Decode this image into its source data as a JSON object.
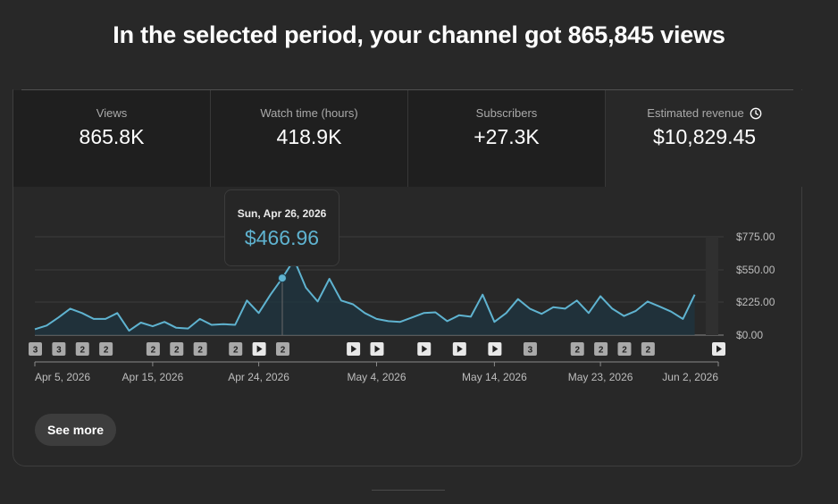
{
  "headline": "In the selected period, your channel got 865,845 views",
  "metrics": [
    {
      "label": "Views",
      "value": "865.8K"
    },
    {
      "label": "Watch time (hours)",
      "value": "418.9K"
    },
    {
      "label": "Subscribers",
      "value": "+27.3K"
    },
    {
      "label": "Estimated revenue",
      "value": "$10,829.45",
      "icon": "clock-icon"
    }
  ],
  "tooltip": {
    "date": "Sun, Apr 26, 2026",
    "value": "$466.96"
  },
  "see_more_label": "See more",
  "colors": {
    "line": "#5fb3d0",
    "accent_value": "#5fb3d0",
    "background": "#282828"
  },
  "chart_data": {
    "type": "area",
    "metric": "Estimated revenue",
    "y_ticks": [
      "$775.00",
      "$550.00",
      "$225.00",
      "$0.00"
    ],
    "y_tick_values": [
      775,
      550,
      225,
      0
    ],
    "x_tick_labels": [
      "Apr 5, 2026",
      "Apr 15, 2026",
      "Apr 24, 2026",
      "May 4, 2026",
      "May 14, 2026",
      "May 23, 2026",
      "Jun 2, 2026"
    ],
    "x_tick_days": [
      0,
      10,
      19,
      29,
      39,
      48,
      58
    ],
    "start_date": "2026-04-05",
    "values": [
      40,
      65,
      120,
      180,
      150,
      110,
      110,
      150,
      30,
      85,
      60,
      90,
      50,
      45,
      110,
      70,
      75,
      70,
      240,
      150,
      300,
      466.96,
      620,
      370,
      230,
      460,
      240,
      210,
      150,
      110,
      95,
      90,
      120,
      150,
      155,
      95,
      135,
      125,
      300,
      90,
      150,
      255,
      180,
      145,
      190,
      180,
      240,
      150,
      285,
      180,
      130,
      165,
      230,
      195,
      160,
      110,
      300
    ],
    "highlight_index": 21,
    "markers": [
      {
        "day": 0,
        "kind": "count",
        "label": "3"
      },
      {
        "day": 2,
        "kind": "count",
        "label": "3"
      },
      {
        "day": 4,
        "kind": "count",
        "label": "2"
      },
      {
        "day": 6,
        "kind": "count",
        "label": "2"
      },
      {
        "day": 10,
        "kind": "count",
        "label": "2"
      },
      {
        "day": 12,
        "kind": "count",
        "label": "2"
      },
      {
        "day": 14,
        "kind": "count",
        "label": "2"
      },
      {
        "day": 17,
        "kind": "count",
        "label": "2"
      },
      {
        "day": 19,
        "kind": "video",
        "label": ""
      },
      {
        "day": 21,
        "kind": "count",
        "label": "2"
      },
      {
        "day": 27,
        "kind": "video",
        "label": ""
      },
      {
        "day": 29,
        "kind": "video",
        "label": ""
      },
      {
        "day": 33,
        "kind": "video",
        "label": ""
      },
      {
        "day": 36,
        "kind": "video",
        "label": ""
      },
      {
        "day": 39,
        "kind": "video",
        "label": ""
      },
      {
        "day": 42,
        "kind": "count",
        "label": "3"
      },
      {
        "day": 46,
        "kind": "count",
        "label": "2"
      },
      {
        "day": 48,
        "kind": "count",
        "label": "2"
      },
      {
        "day": 50,
        "kind": "count",
        "label": "2"
      },
      {
        "day": 52,
        "kind": "count",
        "label": "2"
      },
      {
        "day": 58,
        "kind": "video",
        "label": ""
      }
    ]
  }
}
